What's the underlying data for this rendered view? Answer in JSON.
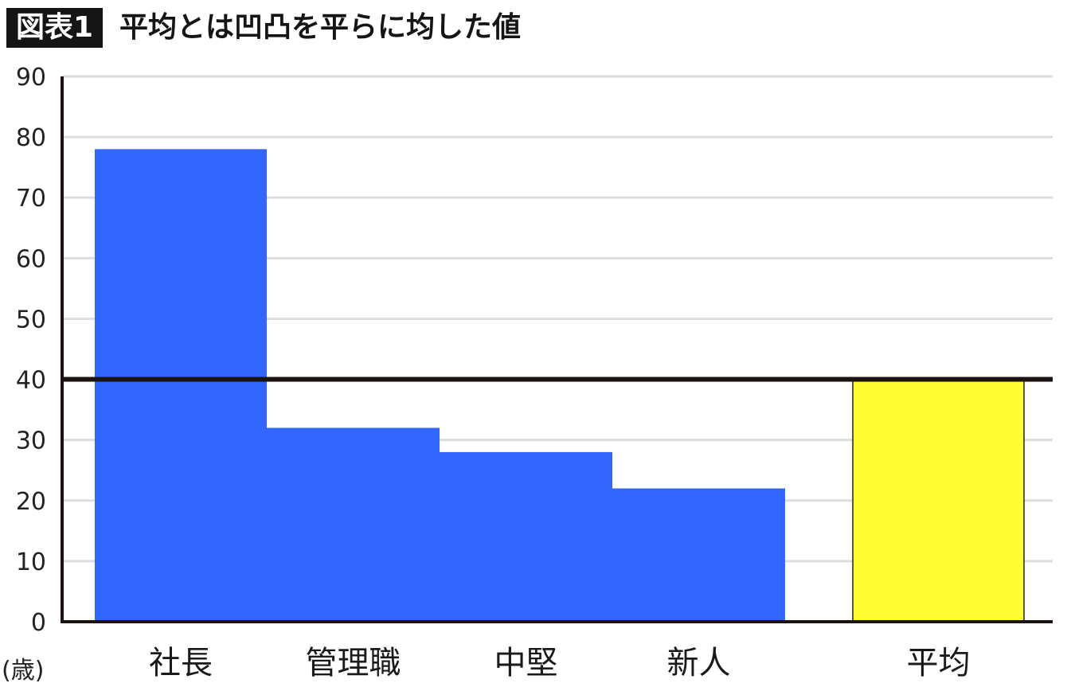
{
  "header": {
    "badge": "図表1",
    "title": "平均とは凹凸を平らに均した値"
  },
  "chart_data": {
    "type": "bar",
    "categories": [
      "社長",
      "管理職",
      "中堅",
      "新人",
      "平均"
    ],
    "values": [
      78,
      32,
      28,
      22,
      40
    ],
    "bar_colors": [
      "#3366ff",
      "#3366ff",
      "#3366ff",
      "#3366ff",
      "#ffff33"
    ],
    "average_line": 40,
    "ylim": [
      0,
      90
    ],
    "yticks": [
      0,
      10,
      20,
      30,
      40,
      50,
      60,
      70,
      80,
      90
    ],
    "y_unit_label": "(歳)",
    "grid": true,
    "line_color": "#1a1311"
  }
}
